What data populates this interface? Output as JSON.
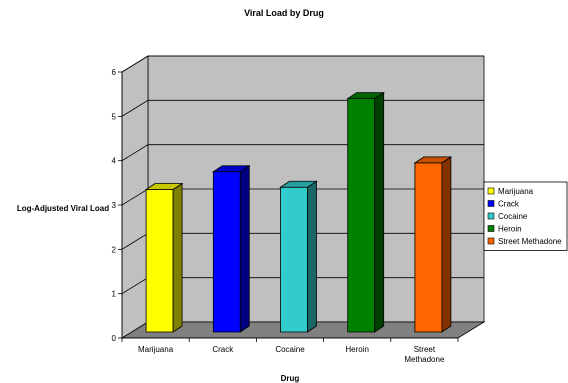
{
  "chart_data": {
    "type": "bar",
    "title": "Viral Load by Drug",
    "xlabel": "Drug",
    "ylabel": "Log-Adjusted Viral Load",
    "ylim": [
      0,
      6
    ],
    "yticks": [
      "0",
      "1",
      "2",
      "3",
      "4",
      "5",
      "6"
    ],
    "categories": [
      {
        "label": [
          "Marijuana"
        ]
      },
      {
        "label": [
          "Crack"
        ]
      },
      {
        "label": [
          "Cocaine"
        ]
      },
      {
        "label": [
          "Heroin"
        ]
      },
      {
        "label": [
          "Street",
          "Methadone"
        ]
      }
    ],
    "series": [
      {
        "name": "Marijuana",
        "value": 3.35,
        "color": "#FFFF00"
      },
      {
        "name": "Crack",
        "value": 3.75,
        "color": "#0000FF"
      },
      {
        "name": "Cocaine",
        "value": 3.4,
        "color": "#33CCCC"
      },
      {
        "name": "Heroin",
        "value": 5.4,
        "color": "#008000"
      },
      {
        "name": "Street Methadone",
        "value": 3.95,
        "color": "#FF6600"
      }
    ],
    "grid": true,
    "legend": "right",
    "style": "3d-column",
    "wall_color": "#C0C0C0",
    "floor_color": "#808080"
  }
}
